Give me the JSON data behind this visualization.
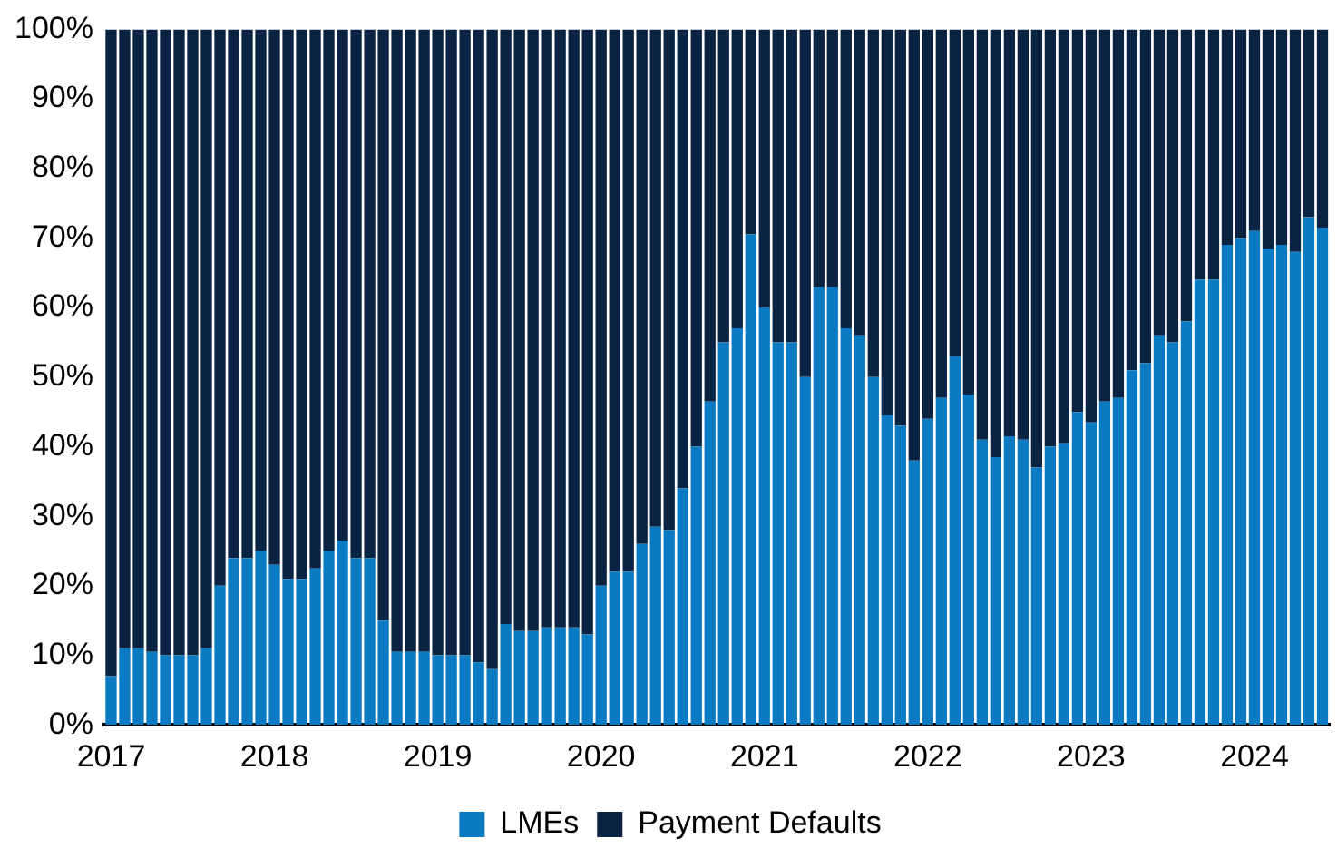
{
  "chart_data": {
    "type": "bar",
    "stacked": true,
    "categories": [
      "2017",
      null,
      null,
      null,
      null,
      null,
      null,
      null,
      null,
      null,
      null,
      null,
      "2018",
      null,
      null,
      null,
      null,
      null,
      null,
      null,
      null,
      null,
      null,
      null,
      "2019",
      null,
      null,
      null,
      null,
      null,
      null,
      null,
      null,
      null,
      null,
      null,
      "2020",
      null,
      null,
      null,
      null,
      null,
      null,
      null,
      null,
      null,
      null,
      null,
      "2021",
      null,
      null,
      null,
      null,
      null,
      null,
      null,
      null,
      null,
      null,
      null,
      "2022",
      null,
      null,
      null,
      null,
      null,
      null,
      null,
      null,
      null,
      null,
      null,
      "2023",
      null,
      null,
      null,
      null,
      null,
      null,
      null,
      null,
      null,
      null,
      null,
      "2024",
      null,
      null,
      null,
      null,
      null
    ],
    "series": [
      {
        "name": "LMEs",
        "color": "#0a7bc2",
        "values": [
          7,
          11,
          11,
          10.5,
          10,
          10,
          10,
          11,
          20,
          24,
          24,
          25,
          23,
          21,
          21,
          22.5,
          25,
          26.5,
          24,
          24,
          15,
          10.5,
          10.5,
          10.5,
          10,
          10,
          10,
          9,
          8,
          14.5,
          13.5,
          13.5,
          14,
          14,
          14,
          13,
          20,
          22,
          22,
          26,
          28.5,
          28,
          34,
          40,
          46.5,
          55,
          57,
          70.5,
          60,
          55,
          55,
          50,
          63,
          63,
          57,
          56,
          50,
          44.5,
          43,
          38,
          44,
          47,
          53,
          47.5,
          41,
          38.5,
          41.5,
          41,
          37,
          40,
          40.5,
          45,
          43.5,
          46.5,
          47,
          51,
          52,
          56,
          55,
          58,
          64,
          64,
          69,
          70,
          71,
          68.5,
          69,
          68,
          73,
          71.5
        ]
      },
      {
        "name": "Payment Defaults",
        "color": "#0b2342",
        "values": [
          93,
          89,
          89,
          89.5,
          90,
          90,
          90,
          89,
          80,
          76,
          76,
          75,
          77,
          79,
          79,
          77.5,
          75,
          73.5,
          76,
          76,
          85,
          89.5,
          89.5,
          89.5,
          90,
          90,
          90,
          91,
          92,
          85.5,
          86.5,
          86.5,
          86,
          86,
          86,
          87,
          80,
          78,
          78,
          74,
          71.5,
          72,
          66,
          60,
          53.5,
          45,
          43,
          29.5,
          40,
          45,
          45,
          50,
          37,
          37,
          43,
          44,
          50,
          55.5,
          57,
          62,
          56,
          53,
          47,
          52.5,
          59,
          61.5,
          58.5,
          59,
          63,
          60,
          59.5,
          55,
          56.5,
          53.5,
          53,
          49,
          48,
          44,
          45,
          42,
          36,
          36,
          31,
          30,
          29,
          31.5,
          31,
          32,
          27,
          28.5
        ]
      }
    ],
    "ylim": [
      0,
      100
    ],
    "yticks": [
      {
        "value": 0,
        "label": "0%"
      },
      {
        "value": 10,
        "label": "10%"
      },
      {
        "value": 20,
        "label": "20%"
      },
      {
        "value": 30,
        "label": "30%"
      },
      {
        "value": 40,
        "label": "40%"
      },
      {
        "value": 50,
        "label": "50%"
      },
      {
        "value": 60,
        "label": "60%"
      },
      {
        "value": 70,
        "label": "70%"
      },
      {
        "value": 80,
        "label": "80%"
      },
      {
        "value": 90,
        "label": "90%"
      },
      {
        "value": 100,
        "label": "100%"
      }
    ],
    "grid": false,
    "legend": "bottom"
  }
}
